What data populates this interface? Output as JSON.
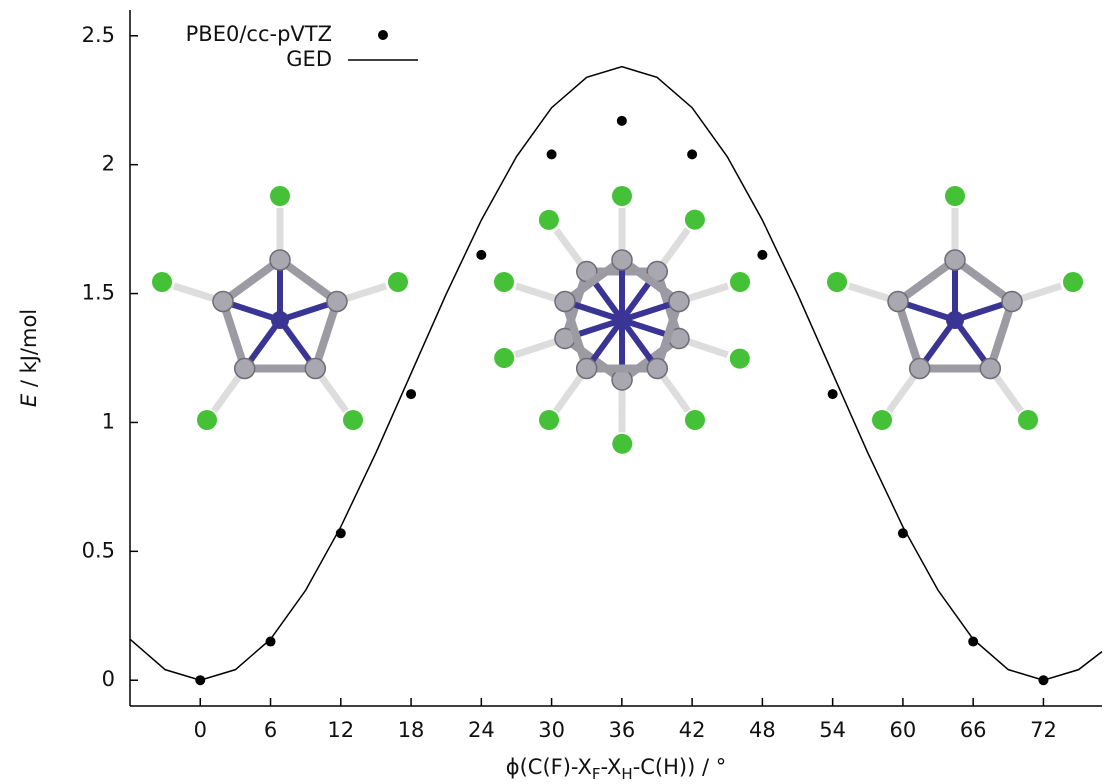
{
  "chart_data": {
    "type": "scatter_line",
    "xlabel": [
      "ϕ(C(F)-X",
      "F",
      "-X",
      "H",
      "-C(H)) / °"
    ],
    "ylabel": [
      "E",
      " / kJ/mol"
    ],
    "xlim": [
      -6,
      77
    ],
    "ylim": [
      -0.1,
      2.6
    ],
    "xticks": [
      0,
      6,
      12,
      18,
      24,
      30,
      36,
      42,
      48,
      54,
      60,
      66,
      72
    ],
    "yticks": [
      0,
      0.5,
      1,
      1.5,
      2,
      2.5
    ],
    "legend": "upper left",
    "series": [
      {
        "name": "PBE0/cc-pVTZ",
        "color": "#000000",
        "style": "points",
        "x": [
          0,
          6,
          12,
          18,
          24,
          30,
          36,
          42,
          48,
          54,
          60,
          66,
          72
        ],
        "values": [
          0,
          0.15,
          0.57,
          1.11,
          1.65,
          2.04,
          2.17,
          2.04,
          1.65,
          1.11,
          0.57,
          0.15,
          0
        ]
      },
      {
        "name": "GED",
        "color": "#000000",
        "style": "line",
        "x": [
          -6,
          -3,
          0,
          3,
          6,
          9,
          12,
          15,
          18,
          21,
          24,
          27,
          30,
          33,
          36,
          39,
          42,
          45,
          48,
          51,
          54,
          57,
          60,
          63,
          66,
          69,
          72,
          75,
          77
        ],
        "values": [
          0.159,
          0.041,
          0,
          0.041,
          0.159,
          0.349,
          0.595,
          0.882,
          1.19,
          1.498,
          1.785,
          2.031,
          2.221,
          2.339,
          2.38,
          2.339,
          2.221,
          2.031,
          1.785,
          1.498,
          1.19,
          0.882,
          0.595,
          0.349,
          0.159,
          0.041,
          0,
          0.041,
          0.111
        ]
      }
    ]
  }
}
